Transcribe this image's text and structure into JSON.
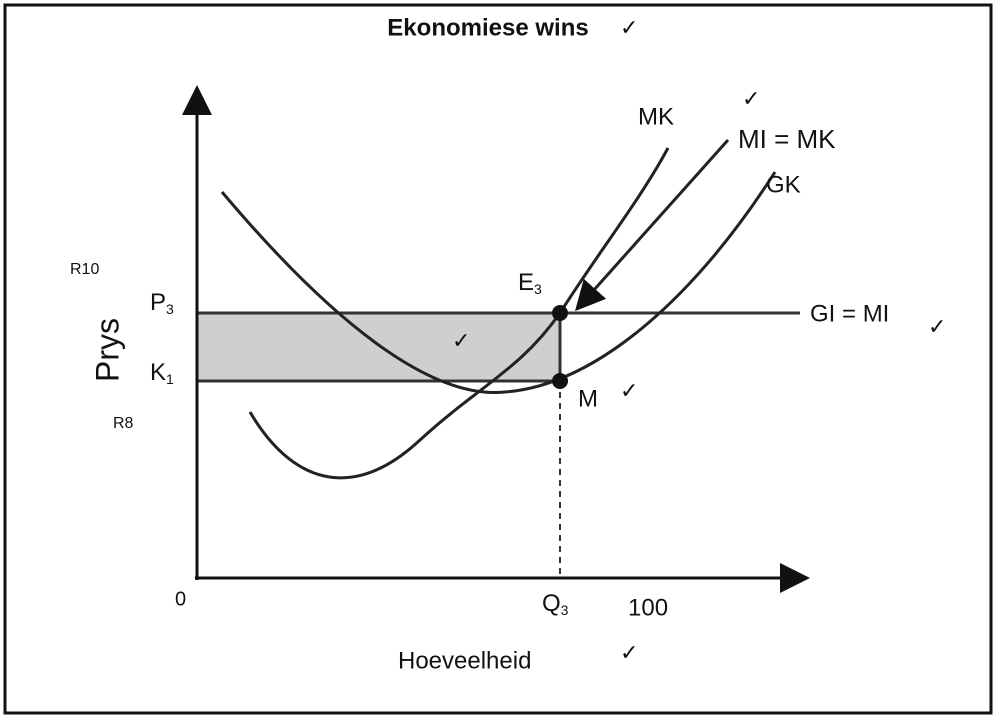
{
  "title": "Ekonomiese wins",
  "checks": [
    "✓",
    "✓",
    "✓",
    "✓",
    "✓",
    "✓",
    "✓"
  ],
  "curves": {
    "mk": "MK",
    "mi_mk": "MI = MK",
    "gk": "GK",
    "gi_mi": "GI = MI"
  },
  "points": {
    "e3": {
      "main": "E",
      "sub": "3"
    },
    "m": "M"
  },
  "y_axis": {
    "label": "Prys",
    "p3": {
      "main": "P",
      "sub": "3"
    },
    "k1": {
      "main": "K",
      "sub": "1"
    },
    "r10": "R10",
    "r8": "R8"
  },
  "x_axis": {
    "label": "Hoeveelheid",
    "origin": "0",
    "q3": {
      "main": "Q",
      "sub": "3"
    },
    "value": "100"
  }
}
